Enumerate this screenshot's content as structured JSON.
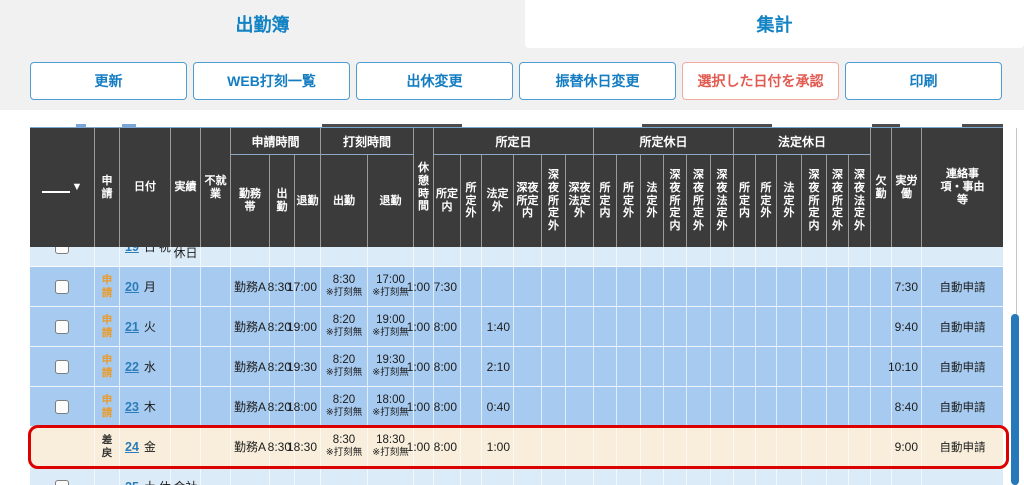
{
  "tabs": {
    "attendance": "出勤簿",
    "summary": "集計"
  },
  "toolbar": {
    "buttons": [
      {
        "label": "更新",
        "style": "blue"
      },
      {
        "label": "WEB打刻一覧",
        "style": "blue"
      },
      {
        "label": "出休変更",
        "style": "blue"
      },
      {
        "label": "振替休日変更",
        "style": "blue"
      },
      {
        "label": "選択した日付を承認",
        "style": "red"
      },
      {
        "label": "印刷",
        "style": "blue"
      }
    ]
  },
  "table": {
    "filter_icon": "▼",
    "header": {
      "apply": "申\n請",
      "date": "日付",
      "jisseki": "実績",
      "fushugyo": "不就\n業",
      "g_shinsei": "申請時間",
      "kinmutai": "勤務\n帯",
      "s_in": "出\n勤",
      "s_out": "退勤",
      "g_dakoku": "打刻時間",
      "d_in": "出勤",
      "d_out": "退勤",
      "kyukei": "休\n憩\n時\n間",
      "g_shoteibi": "所定日",
      "sb": [
        "所定\n内",
        "所\n定\n外",
        "法定\n外",
        "深夜\n所定\n内",
        "深\n夜\n所\n定\n外",
        "深夜\n法定\n外"
      ],
      "g_shoteikyu": "所定休日",
      "sk": [
        "所\n定\n内",
        "所\n定\n外",
        "法\n定\n外",
        "深\n夜\n所\n定\n内",
        "深\n夜\n所\n定\n外",
        "深\n夜\n法\n定\n外"
      ],
      "g_hoteikyu": "法定休日",
      "hk": [
        "所\n定\n内",
        "所\n定\n外",
        "法\n定\n外",
        "深\n夜\n所\n定\n内",
        "深\n夜\n所\n定\n外",
        "深\n夜\n法\n定\n外"
      ],
      "kekkin": "欠\n勤",
      "jitsuro": "実労\n働",
      "renraku": "連絡事\n項・事由\n等"
    },
    "rows": [
      {
        "type": "light",
        "clip": "top",
        "checkbox": true,
        "apply": "",
        "date": "19",
        "day": "日",
        "mark": "祝",
        "jisseki": "休日",
        "renraku": ""
      },
      {
        "type": "blue",
        "clip": "none",
        "checkbox": true,
        "apply": "申\n請",
        "apply_style": "orange",
        "date": "20",
        "day": "月",
        "kinmutai": "勤務A",
        "shukkin": "8:30",
        "taikin": "17:00",
        "dakoku_in": "8:30",
        "dakoku_in_note": "※打刻無",
        "dakoku_out": "17:00",
        "dakoku_out_note": "※打刻無",
        "kyukei": "1:00",
        "shotei_nai": "7:30",
        "jitsuro": "7:30",
        "renraku": "自動申請"
      },
      {
        "type": "blue",
        "clip": "none",
        "checkbox": true,
        "apply": "申\n請",
        "apply_style": "orange",
        "date": "21",
        "day": "火",
        "kinmutai": "勤務A",
        "shukkin": "8:20",
        "taikin": "19:00",
        "dakoku_in": "8:20",
        "dakoku_in_note": "※打刻無",
        "dakoku_out": "19:00",
        "dakoku_out_note": "※打刻無",
        "kyukei": "1:00",
        "shotei_nai": "8:00",
        "hotei_gai": "1:40",
        "jitsuro": "9:40",
        "renraku": "自動申請"
      },
      {
        "type": "blue",
        "clip": "none",
        "checkbox": true,
        "apply": "申\n請",
        "apply_style": "orange",
        "date": "22",
        "day": "水",
        "kinmutai": "勤務A",
        "shukkin": "8:20",
        "taikin": "19:30",
        "dakoku_in": "8:20",
        "dakoku_in_note": "※打刻無",
        "dakoku_out": "19:30",
        "dakoku_out_note": "※打刻無",
        "kyukei": "1:00",
        "shotei_nai": "8:00",
        "hotei_gai": "2:10",
        "jitsuro": "10:10",
        "renraku": "自動申請"
      },
      {
        "type": "blue",
        "clip": "none",
        "checkbox": true,
        "apply": "申\n請",
        "apply_style": "orange",
        "date": "23",
        "day": "木",
        "kinmutai": "勤務A",
        "shukkin": "8:20",
        "taikin": "18:00",
        "dakoku_in": "8:20",
        "dakoku_in_note": "※打刻無",
        "dakoku_out": "18:00",
        "dakoku_out_note": "※打刻無",
        "kyukei": "1:00",
        "shotei_nai": "8:00",
        "hotei_gai": "0:40",
        "jitsuro": "8:40",
        "renraku": "自動申請"
      },
      {
        "type": "cream",
        "clip": "none",
        "checkbox": false,
        "apply": "差\n戻",
        "apply_style": "dark",
        "date": "24",
        "day": "金",
        "kinmutai": "勤務A",
        "shukkin": "8:30",
        "taikin": "18:30",
        "dakoku_in": "8:30",
        "dakoku_in_note": "※打刻無",
        "dakoku_out": "18:30",
        "dakoku_out_note": "※打刻無",
        "kyukei": "1:00",
        "shotei_nai": "8:00",
        "hotei_gai": "1:00",
        "jitsuro": "9:00",
        "renraku": "自動申請",
        "highlighted": true
      },
      {
        "type": "light",
        "clip": "bottom",
        "checkbox": true,
        "apply": "",
        "date": "25",
        "day": "土",
        "mark": "休",
        "jisseki": "会社",
        "renraku": ""
      }
    ]
  },
  "colors": {
    "accent_blue": "#1383c4",
    "button_border": "#4f9ed2",
    "danger_text": "#e25b52",
    "danger_border": "#f3aaa5",
    "highlight_red": "#dd0000",
    "header_bg": "#3b3b3b",
    "row_blue": "#a7cbf0",
    "row_light": "#dcebf8",
    "row_cream": "#f8eedb",
    "apply_orange": "#ea9b2d",
    "link_blue": "#2a7db8",
    "scrollbar_blue": "#2579bb"
  }
}
